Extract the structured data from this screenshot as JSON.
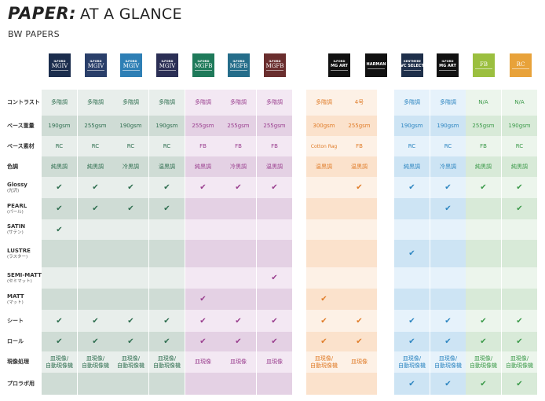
{
  "header": {
    "title_bold": "PAPER:",
    "title_rest": "AT A GLANCE",
    "subtitle": "BW PAPERS"
  },
  "row_labels": [
    {
      "main": "コントラスト",
      "sub": ""
    },
    {
      "main": "ベース重量",
      "sub": ""
    },
    {
      "main": "ベース素材",
      "sub": ""
    },
    {
      "main": "色調",
      "sub": ""
    },
    {
      "main": "Glossy",
      "sub": "(光沢)"
    },
    {
      "main": "PEARL",
      "sub": "(パール)"
    },
    {
      "main": "SATIN",
      "sub": "(サテン)"
    },
    {
      "main": "LUSTRE",
      "sub": "(ラスター)"
    },
    {
      "main": "SEMI-MATT",
      "sub": "(セミマット)"
    },
    {
      "main": "MATT",
      "sub": "(マット)"
    },
    {
      "main": "シート",
      "sub": ""
    },
    {
      "main": "ロール",
      "sub": ""
    },
    {
      "main": "現像処理",
      "sub": ""
    },
    {
      "main": "プロラボ用",
      "sub": ""
    }
  ],
  "check_glyph": "✔",
  "products": [
    {
      "logo_brand": "ILFORD",
      "logo_mark": "MGIV",
      "logo_bg": "#1b2d4d",
      "text_color": "#2e6e4f",
      "light_bg": "#e8eeeb",
      "dark_bg": "#cfdcd5",
      "contrast": "多階調",
      "weight": "190gsm",
      "base": "RC",
      "tone": "純黒調",
      "glossy": true,
      "pearl": true,
      "satin": true,
      "lustre": false,
      "semimatt": false,
      "matt": false,
      "sheet": true,
      "roll": true,
      "process": [
        "皿現像/",
        "自動現像機"
      ],
      "prolab": false
    },
    {
      "logo_brand": "ILFORD",
      "logo_mark": "MGIV",
      "logo_bg": "#2a3f6a",
      "text_color": "#2e6e4f",
      "light_bg": "#e8eeeb",
      "dark_bg": "#cfdcd5",
      "contrast": "多階調",
      "weight": "255gsm",
      "base": "RC",
      "tone": "純黒調",
      "glossy": true,
      "pearl": true,
      "satin": false,
      "lustre": false,
      "semimatt": false,
      "matt": false,
      "sheet": true,
      "roll": true,
      "process": [
        "皿現像/",
        "自動現像機"
      ],
      "prolab": false
    },
    {
      "logo_brand": "ILFORD",
      "logo_mark": "MGIV",
      "logo_bg": "#2e7fb5",
      "text_color": "#2e6e4f",
      "light_bg": "#e8eeeb",
      "dark_bg": "#cfdcd5",
      "contrast": "多階調",
      "weight": "190gsm",
      "base": "RC",
      "tone": "冷黒調",
      "glossy": true,
      "pearl": true,
      "satin": false,
      "lustre": false,
      "semimatt": false,
      "matt": false,
      "sheet": true,
      "roll": true,
      "process": [
        "皿現像/",
        "自動現像機"
      ],
      "prolab": false
    },
    {
      "logo_brand": "ILFORD",
      "logo_mark": "MGIV",
      "logo_bg": "#2b2f55",
      "text_color": "#2e6e4f",
      "light_bg": "#e8eeeb",
      "dark_bg": "#cfdcd5",
      "contrast": "多階調",
      "weight": "190gsm",
      "base": "RC",
      "tone": "温黒調",
      "glossy": true,
      "pearl": true,
      "satin": false,
      "lustre": false,
      "semimatt": false,
      "matt": false,
      "sheet": true,
      "roll": true,
      "process": [
        "皿現像/",
        "自動現像機"
      ],
      "prolab": false
    },
    {
      "logo_brand": "ILFORD",
      "logo_mark": "MGFB",
      "logo_bg": "#1f7a5a",
      "text_color": "#9a3f8f",
      "light_bg": "#f3e8f3",
      "dark_bg": "#e4d1e4",
      "contrast": "多階調",
      "weight": "255gsm",
      "base": "FB",
      "tone": "純黒調",
      "glossy": true,
      "pearl": false,
      "satin": false,
      "lustre": false,
      "semimatt": false,
      "matt": true,
      "sheet": true,
      "roll": true,
      "process": [
        "皿現像"
      ],
      "prolab": false
    },
    {
      "logo_brand": "ILFORD",
      "logo_mark": "MGFB",
      "logo_bg": "#256d8a",
      "text_color": "#9a3f8f",
      "light_bg": "#f3e8f3",
      "dark_bg": "#e4d1e4",
      "contrast": "多階調",
      "weight": "255gsm",
      "base": "FB",
      "tone": "冷黒調",
      "glossy": true,
      "pearl": false,
      "satin": false,
      "lustre": false,
      "semimatt": false,
      "matt": false,
      "sheet": true,
      "roll": true,
      "process": [
        "皿現像"
      ],
      "prolab": false
    },
    {
      "logo_brand": "ILFORD",
      "logo_mark": "MGFB",
      "logo_bg": "#6a2e2e",
      "text_color": "#9a3f8f",
      "light_bg": "#f3e8f3",
      "dark_bg": "#e4d1e4",
      "contrast": "多階調",
      "weight": "255gsm",
      "base": "FB",
      "tone": "温黒調",
      "glossy": true,
      "pearl": false,
      "satin": false,
      "lustre": false,
      "semimatt": true,
      "matt": false,
      "sheet": true,
      "roll": true,
      "process": [
        "皿現像"
      ],
      "prolab": false
    },
    {
      "logo_brand": "ILFORD",
      "logo_mark": "MG ART",
      "logo_bg": "#111111",
      "text_color": "#e07d2a",
      "light_bg": "#fdf1e6",
      "dark_bg": "#fbe2cc",
      "contrast": "多階調",
      "weight": "300gsm",
      "base": "Cotton Rag",
      "tone": "温黒調",
      "glossy": false,
      "pearl": false,
      "satin": false,
      "lustre": false,
      "semimatt": false,
      "matt": true,
      "sheet": true,
      "roll": true,
      "process": [
        "皿現像/",
        "自動現像機"
      ],
      "prolab": false
    },
    {
      "logo_brand": "",
      "logo_mark": "HARMAN",
      "logo_bg": "#111111",
      "text_color": "#e07d2a",
      "light_bg": "#fdf1e6",
      "dark_bg": "#fbe2cc",
      "contrast": "4号",
      "weight": "255gsm",
      "base": "FB",
      "tone": "温黒調",
      "glossy": true,
      "pearl": false,
      "satin": false,
      "lustre": false,
      "semimatt": false,
      "matt": false,
      "sheet": true,
      "roll": true,
      "process": [
        "皿現像"
      ],
      "prolab": false
    },
    {
      "logo_brand": "KENTMERE",
      "logo_mark": "VC SELECT",
      "logo_bg": "#1e2f4a",
      "text_color": "#2e86c1",
      "light_bg": "#e6f2fb",
      "dark_bg": "#cde4f4",
      "contrast": "多階調",
      "weight": "190gsm",
      "base": "RC",
      "tone": "純黒調",
      "glossy": true,
      "pearl": false,
      "satin": false,
      "lustre": true,
      "semimatt": false,
      "matt": false,
      "sheet": true,
      "roll": true,
      "process": [
        "皿現像/",
        "自動現像機"
      ],
      "prolab": true
    },
    {
      "logo_brand": "ILFORD",
      "logo_mark": "MG ART",
      "logo_bg": "#111111",
      "text_color": "#2e86c1",
      "light_bg": "#e6f2fb",
      "dark_bg": "#cde4f4",
      "contrast": "多階調",
      "weight": "190gsm",
      "base": "RC",
      "tone": "冷黒調",
      "glossy": true,
      "pearl": true,
      "satin": false,
      "lustre": false,
      "semimatt": false,
      "matt": false,
      "sheet": true,
      "roll": true,
      "process": [
        "皿現像/",
        "自動現像機"
      ],
      "prolab": true
    },
    {
      "logo_brand": "",
      "logo_mark": "FB",
      "logo_bg": "#9bbf3f",
      "text_color": "#3c9a4a",
      "light_bg": "#ecf5ec",
      "dark_bg": "#d8ead8",
      "contrast": "N/A",
      "weight": "255gsm",
      "base": "FB",
      "tone": "純黒調",
      "glossy": true,
      "pearl": false,
      "satin": false,
      "lustre": false,
      "semimatt": false,
      "matt": false,
      "sheet": true,
      "roll": true,
      "process": [
        "皿現像/",
        "自動現像機"
      ],
      "prolab": true
    },
    {
      "logo_brand": "",
      "logo_mark": "RC",
      "logo_bg": "#e8a23a",
      "text_color": "#3c9a4a",
      "light_bg": "#ecf5ec",
      "dark_bg": "#d8ead8",
      "contrast": "N/A",
      "weight": "190gsm",
      "base": "RC",
      "tone": "純黒調",
      "glossy": true,
      "pearl": true,
      "satin": false,
      "lustre": false,
      "semimatt": false,
      "matt": false,
      "sheet": true,
      "roll": true,
      "process": [
        "皿現像/",
        "自動現像機"
      ],
      "prolab": true
    }
  ]
}
